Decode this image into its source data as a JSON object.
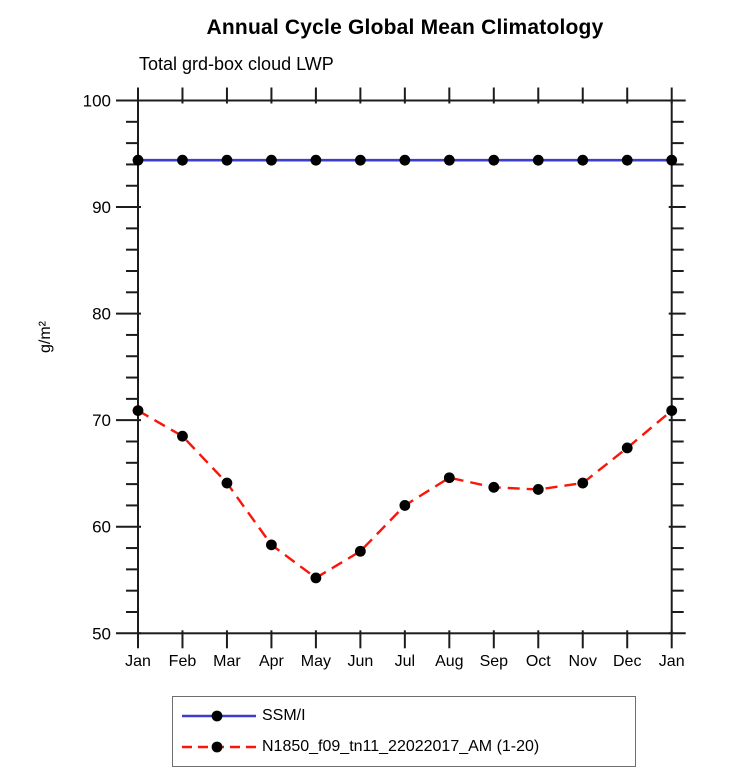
{
  "chart_data": {
    "type": "line",
    "title": "Annual Cycle Global Mean Climatology",
    "subtitle": "Total grd-box cloud LWP",
    "xlabel": "",
    "ylabel": "g/m²",
    "categories": [
      "Jan",
      "Feb",
      "Mar",
      "Apr",
      "May",
      "Jun",
      "Jul",
      "Aug",
      "Sep",
      "Oct",
      "Nov",
      "Dec",
      "Jan"
    ],
    "ylim": [
      50,
      100
    ],
    "ytick_major": [
      50,
      60,
      70,
      80,
      90,
      100
    ],
    "ytick_minor_step": 2,
    "grid": false,
    "legend_position": "bottom-left",
    "marker": {
      "shape": "circle",
      "color": "#000000",
      "radius": 5.4
    },
    "series": [
      {
        "name": "SSM/I",
        "color": "#3c3ccd",
        "line_style": "solid",
        "values": [
          94.4,
          94.4,
          94.4,
          94.4,
          94.4,
          94.4,
          94.4,
          94.4,
          94.4,
          94.4,
          94.4,
          94.4,
          94.4
        ]
      },
      {
        "name": "N1850_f09_tn11_22022017_AM (1-20)",
        "color": "#f91508",
        "line_style": "dashed",
        "values": [
          70.9,
          68.5,
          64.1,
          58.3,
          55.2,
          57.7,
          62.0,
          64.6,
          63.7,
          63.5,
          64.1,
          67.4,
          70.9
        ]
      }
    ],
    "axis_color": "#1c1c1c"
  }
}
